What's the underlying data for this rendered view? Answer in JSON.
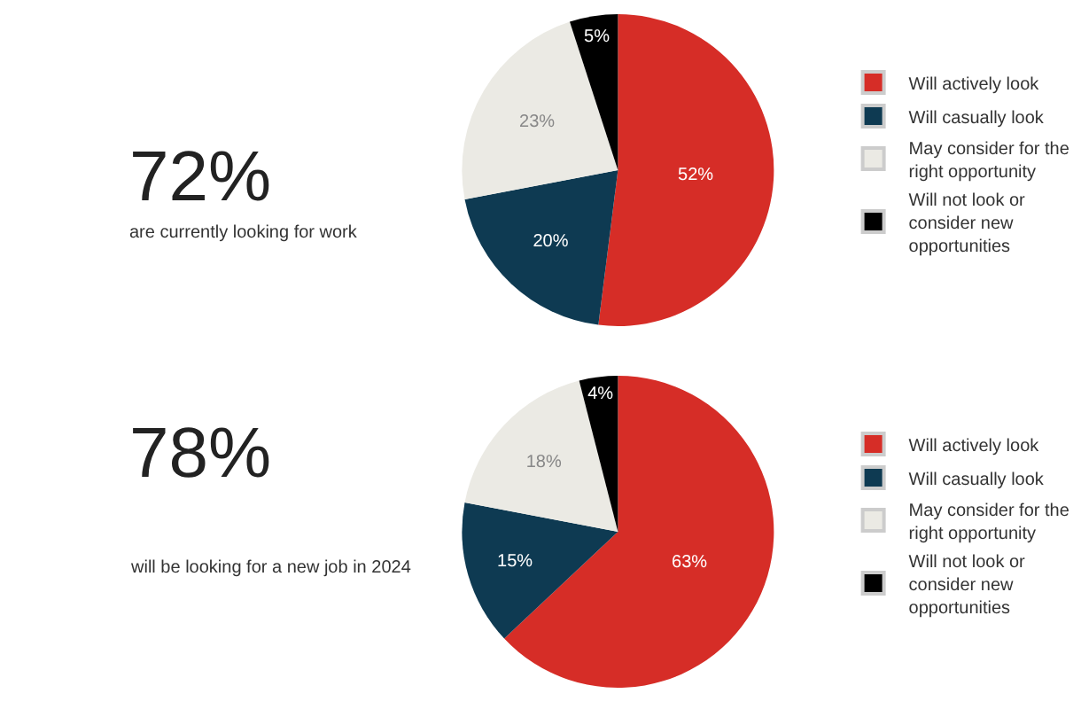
{
  "chart_data": [
    {
      "type": "pie",
      "categories": [
        "Will actively look",
        "Will casually look",
        "May consider for the right opportunity",
        "Will not look or consider new opportunities"
      ],
      "values": [
        52,
        20,
        23,
        5
      ],
      "value_labels": [
        "52%",
        "20%",
        "23%",
        "5%"
      ],
      "colors": [
        "#d62d27",
        "#0e3a52",
        "#ebeae4",
        "#000000"
      ],
      "legend": "right",
      "annotations": [
        "72%",
        "are currently looking for work"
      ]
    },
    {
      "type": "pie",
      "categories": [
        "Will actively look",
        "Will casually look",
        "May consider for the right opportunity",
        "Will not look or consider new opportunities"
      ],
      "values": [
        63,
        15,
        18,
        4
      ],
      "value_labels": [
        "63%",
        "15%",
        "18%",
        "4%"
      ],
      "colors": [
        "#d62d27",
        "#0e3a52",
        "#ebeae4",
        "#000000"
      ],
      "legend": "right",
      "annotations": [
        "78%",
        "will be looking for a new job in 2024"
      ]
    }
  ]
}
